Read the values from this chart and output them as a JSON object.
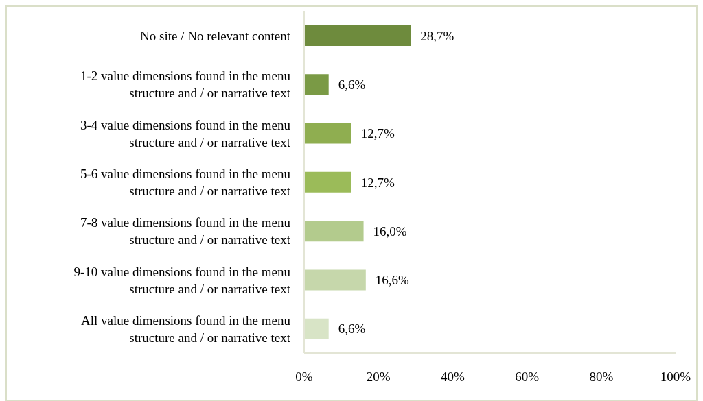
{
  "chart_data": {
    "type": "bar",
    "orientation": "horizontal",
    "categories": [
      "No site / No relevant content",
      "1-2 value dimensions found in the menu structure and / or narrative text",
      "3-4 value dimensions found in the menu structure and / or narrative text",
      "5-6 value dimensions found in the menu structure and / or narrative text",
      "7-8 value dimensions found in the menu structure and / or narrative text",
      "9-10 value dimensions found in the menu structure and / or narrative text",
      "All value dimensions found in the menu structure and / or narrative text"
    ],
    "values": [
      28.7,
      6.6,
      12.7,
      12.7,
      16.0,
      16.6,
      6.6
    ],
    "value_labels": [
      "28,7%",
      "6,6%",
      "12,7%",
      "12,7%",
      "16,0%",
      "16,6%",
      "6,6%"
    ],
    "colors": [
      "#6e8b3d",
      "#7a9a45",
      "#8fae50",
      "#9bbb59",
      "#b3cb8d",
      "#c6d7ab",
      "#d8e4c6"
    ],
    "xlim": [
      0,
      100
    ],
    "xticks": [
      {
        "value": 0,
        "label": "0%"
      },
      {
        "value": 20,
        "label": "20%"
      },
      {
        "value": 40,
        "label": "40%"
      },
      {
        "value": 60,
        "label": "60%"
      },
      {
        "value": 80,
        "label": "80%"
      },
      {
        "value": 100,
        "label": "100%"
      }
    ],
    "grid": false,
    "legend": false
  }
}
